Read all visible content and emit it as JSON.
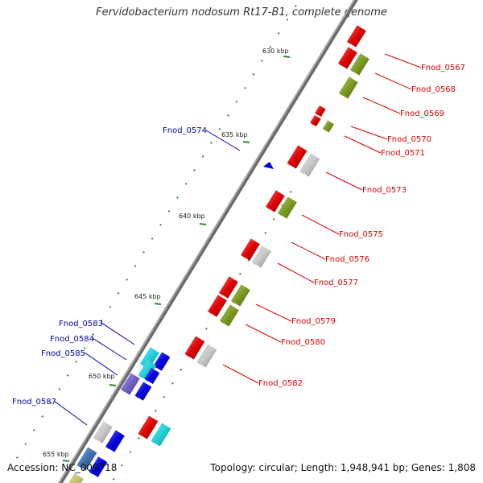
{
  "title": "Fervidobacterium nodosum Rt17-B1, complete genome",
  "footer": {
    "accession": "Accession: NC_009718",
    "stats": "Topology: circular; Length: 1,948,941 bp; Genes: 1,808"
  },
  "colors": {
    "backbone": "#8a8a8a",
    "tick": "#2e8b2e",
    "label_forward": "#dd0000",
    "label_reverse": "#0000aa",
    "red": "#e00000",
    "olive": "#7a9a20",
    "gray": "#c8c8c8",
    "blue": "#0000e0",
    "cyan": "#20d0d8",
    "purple": "#7060c8",
    "steelblue": "#4070b0",
    "khaki": "#c8c070"
  },
  "kbp_ticks": [
    "630 kbp",
    "635 kbp",
    "640 kbp",
    "645 kbp",
    "650 kbp",
    "655 kbp"
  ],
  "gene_labels": {
    "forward": [
      "Fnod_0567",
      "Fnod_0568",
      "Fnod_0569",
      "Fnod_0570",
      "Fnod_0571",
      "Fnod_0573",
      "Fnod_0575",
      "Fnod_0576",
      "Fnod_0577",
      "Fnod_0579",
      "Fnod_0580",
      "Fnod_0582"
    ],
    "reverse": [
      "Fnod_0574",
      "Fnod_0583",
      "Fnod_0584",
      "Fnod_0585",
      "Fnod_0587"
    ]
  }
}
